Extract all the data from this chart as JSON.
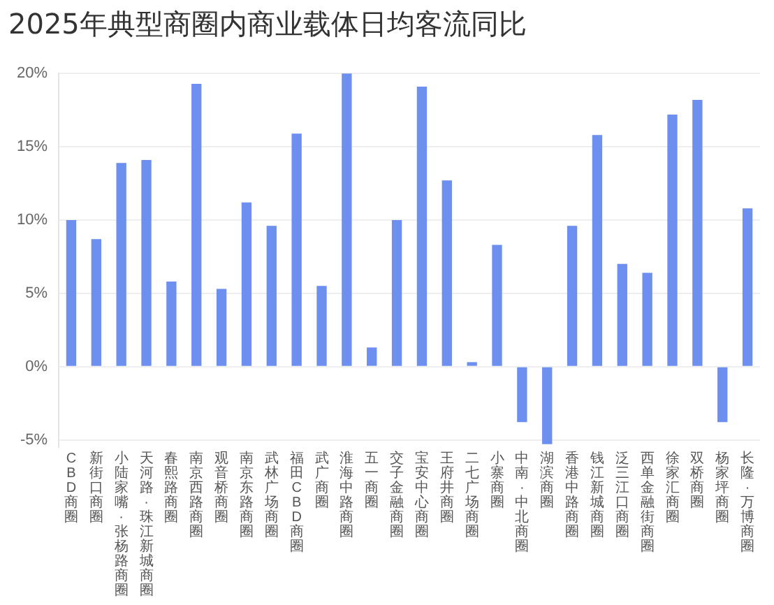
{
  "chart_data": {
    "type": "bar",
    "title": "2025年典型商圈内商业载体日均客流同比",
    "categories": [
      "CBD商圈",
      "新街口商圈",
      "小陆家嘴·张杨路商圈",
      "天河路·珠江新城商圈",
      "春熙路商圈",
      "南京西路商圈",
      "观音桥商圈",
      "南京东路商圈",
      "武林广场商圈",
      "福田CBD商圈",
      "武广商圈",
      "淮海中路商圈",
      "五一商圈",
      "交子金融商圈",
      "宝安中心商圈",
      "王府井商圈",
      "二七广场商圈",
      "小寨商圈",
      "中南·中北商圈",
      "湖滨商圈",
      "香港中路商圈",
      "钱江新城商圈",
      "泛三江口商圈",
      "西单金融街商圈",
      "徐家汇商圈",
      "双桥商圈",
      "杨家坪商圈",
      "长隆·万博商圈"
    ],
    "values": [
      10.0,
      8.7,
      13.9,
      14.1,
      5.8,
      19.3,
      5.3,
      11.2,
      9.6,
      15.9,
      5.5,
      20.0,
      1.3,
      10.0,
      19.1,
      12.7,
      0.3,
      8.3,
      -3.8,
      -5.3,
      9.6,
      15.8,
      7.0,
      6.4,
      17.2,
      18.2,
      -3.8,
      10.8
    ],
    "color": "#6d8ff0",
    "ylim": [
      -5.5,
      20
    ],
    "yticks": [
      {
        "value": -5,
        "label": "-5%"
      },
      {
        "value": 0,
        "label": "0%"
      },
      {
        "value": 5,
        "label": "5%"
      },
      {
        "value": 10,
        "label": "10%"
      },
      {
        "value": 15,
        "label": "15%"
      },
      {
        "value": 20,
        "label": "20%"
      }
    ],
    "grid": "y"
  }
}
